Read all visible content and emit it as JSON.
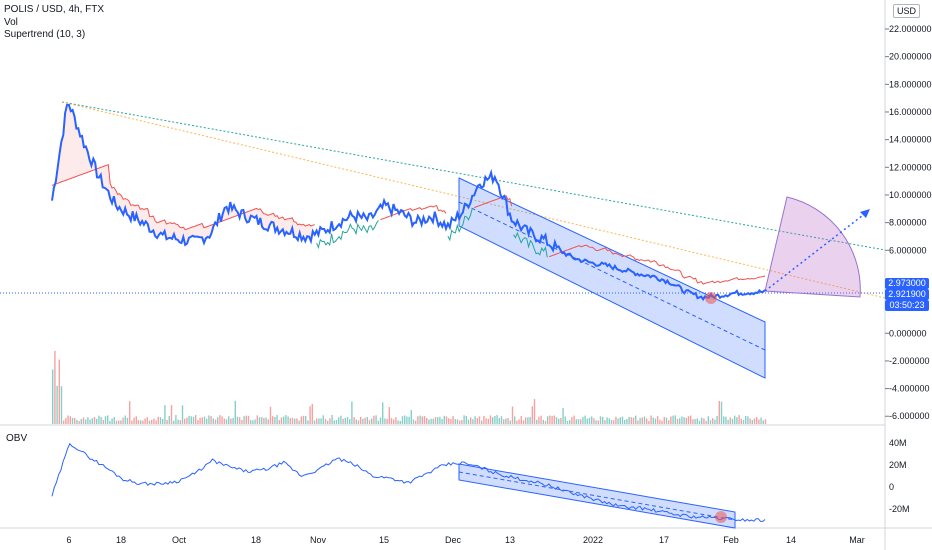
{
  "legend": {
    "symbol": "POLIS / USD, 4h, FTX",
    "vol": "Vol",
    "supertrend": "Supertrend (10, 3)"
  },
  "currency_button": "USD",
  "obv_label": "OBV",
  "price_tags": {
    "upper": "2.973000",
    "last": "2.921900",
    "countdown": "03:50:23"
  },
  "colors": {
    "price_line": "#2962ff",
    "supertrend_down": "#ef5350",
    "supertrend_up": "#26a69a",
    "channel_fill": "#c7d7fb",
    "fan_fill": "#e1bee7",
    "trend_green": "#26a69a",
    "trend_orange": "#ff9800",
    "tag_blue": "#2962ff"
  },
  "chart_data": [
    {
      "type": "line",
      "y_ticks": [
        "22.000000",
        "20.000000",
        "18.000000",
        "16.000000",
        "14.000000",
        "12.000000",
        "10.000000",
        "8.000000",
        "6.000000",
        "0.000000",
        "-2.000000",
        "-4.000000",
        "-6.000000"
      ],
      "ylim": [
        -6.5,
        23
      ],
      "x_ticks": [
        "6",
        "18",
        "Oct",
        "18",
        "Nov",
        "15",
        "Dec",
        "13",
        "2022",
        "17",
        "Feb",
        "14",
        "Mar"
      ],
      "series": [
        {
          "values": [
            9.6,
            16.8,
            13.8,
            11.2,
            9.3,
            8.5,
            7.8,
            7.0,
            6.8,
            6.6,
            7.2,
            9.2,
            8.6,
            8.1,
            7.7,
            7.4,
            7.0,
            7.3,
            8.0,
            8.5,
            8.2,
            9.2,
            8.7,
            8.0,
            8.5,
            7.7,
            8.9,
            10.9,
            11.4,
            8.3,
            7.3,
            6.8,
            6.0,
            5.4,
            5.1,
            4.9,
            4.6,
            4.3,
            4.1,
            3.7,
            3.0,
            2.6,
            2.7,
            2.9,
            2.95,
            3.0
          ]
        }
      ]
    },
    {
      "type": "line",
      "y_ticks": [
        "40M",
        "20M",
        "0",
        "-20M"
      ],
      "ylim": [
        -32,
        48
      ],
      "series": [
        {
          "values": [
            -8,
            40,
            28,
            18,
            7,
            3,
            3,
            5,
            12,
            24,
            18,
            14,
            16,
            22,
            10,
            16,
            26,
            20,
            10,
            8,
            4,
            12,
            20,
            22,
            18,
            12,
            8,
            5,
            1,
            -5,
            -9,
            -14,
            -18,
            -19,
            -22,
            -25,
            -27,
            -28,
            -29,
            -30,
            -30
          ]
        }
      ]
    }
  ]
}
